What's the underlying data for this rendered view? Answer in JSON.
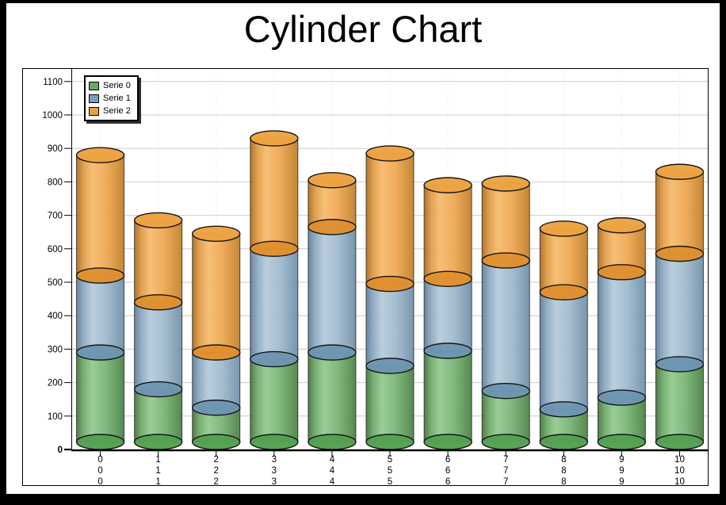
{
  "title": "Cylinder Chart",
  "legend": {
    "position": "top-left",
    "items": [
      {
        "label": "Serie 0",
        "color": "#69A865"
      },
      {
        "label": "Serie 1",
        "color": "#7E9DB9"
      },
      {
        "label": "Serie 2",
        "color": "#E9A23E"
      }
    ]
  },
  "chart_data": {
    "type": "bar",
    "subtype": "stacked-cylinder",
    "title": "Cylinder Chart",
    "categories": [
      "0",
      "1",
      "2",
      "3",
      "4",
      "5",
      "6",
      "7",
      "8",
      "9",
      "10"
    ],
    "x_label_rows": 3,
    "series": [
      {
        "name": "Serie 0",
        "values": [
          290,
          180,
          125,
          270,
          290,
          250,
          295,
          175,
          120,
          155,
          255
        ],
        "color": "#69A865",
        "gradient": [
          "#46713F",
          "#6DAB68",
          "#92C98E",
          "#77B473",
          "#4A7F44"
        ],
        "cap_color": "#54A052"
      },
      {
        "name": "Serie 1",
        "values": [
          230,
          260,
          165,
          330,
          375,
          245,
          215,
          390,
          350,
          375,
          330
        ],
        "color": "#7E9DB9",
        "gradient": [
          "#5F7D97",
          "#8CA8C0",
          "#B5CADA",
          "#9FB9CC",
          "#6F8EA8"
        ],
        "cap_color": "#6D95B1"
      },
      {
        "name": "Serie 2",
        "values": [
          360,
          245,
          355,
          330,
          140,
          390,
          280,
          230,
          190,
          140,
          245
        ],
        "color": "#E9A23E",
        "gradient": [
          "#A86C1E",
          "#E09A45",
          "#F6BA6C",
          "#EFA750",
          "#C07E26"
        ],
        "cap_color": "#E0902E",
        "top_cap_color": "#EDA242"
      }
    ],
    "ylim": [
      0,
      1100
    ],
    "ytick_step": 100,
    "ytick_labels": [
      "0",
      "100",
      "200",
      "300",
      "400",
      "500",
      "600",
      "700",
      "800",
      "900",
      "1000",
      "1100"
    ],
    "grid": true,
    "legend_position": "top-left",
    "outline_color": "#161616",
    "grid_color_h": "#CDCDCD",
    "grid_color_v": "#E0E0E0",
    "axis_color": "#000000"
  }
}
